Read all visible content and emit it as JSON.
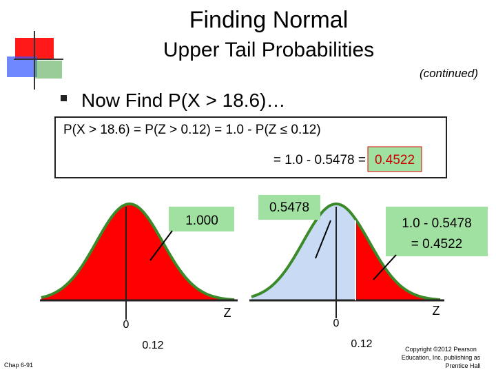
{
  "title": {
    "line1": "Finding Normal",
    "line2": "Upper Tail Probabilities"
  },
  "subtitle": "(continued)",
  "bullet": "Now Find P(X > 18.6)…",
  "box": {
    "line1": "P(X > 18.6) = P(Z > 0.12) = 1.0 - P(Z ≤ 0.12)",
    "line2": "= 1.0 - 0.5478 =",
    "answer": "0.4522"
  },
  "left_chart": {
    "label": "1.000",
    "axis": "Z",
    "zero": "0",
    "z": "0.12"
  },
  "right_chart": {
    "label": "0.5478",
    "upper1": "1.0 - 0.5478",
    "upper2": "= 0.4522",
    "axis": "Z",
    "zero": "0",
    "z": "0.12"
  },
  "footer": {
    "chapter": "Chap 6-91",
    "copyright1": "Copyright ©2012 Pearson",
    "copyright2": "Education, Inc. publishing as",
    "copyright3": "Prentice Hall"
  }
}
